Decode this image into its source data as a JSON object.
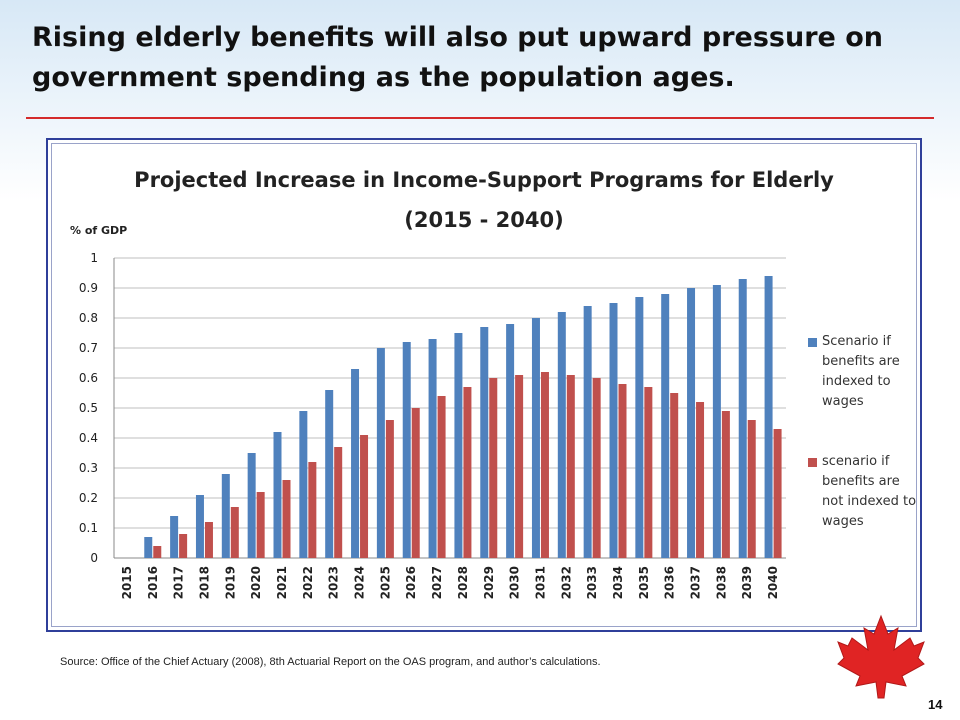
{
  "slide": {
    "title_line1": "Rising elderly benefits will also put upward pressure on",
    "title_line2": "government spending as the population ages.",
    "source": "Source:  Office of the Chief Actuary (2008),  8th Actuarial Report on the OAS program, and author’s calculations.",
    "page_number": "14",
    "accent_color": "#d42b2b",
    "logo": "maple-leaf-icon"
  },
  "chart_data": {
    "type": "bar",
    "title_line1": "Projected Increase in Income-Support Programs for Elderly",
    "title_line2": "(2015 - 2040)",
    "ylabel": "% of GDP",
    "xlabel": "",
    "ylim": [
      0,
      1
    ],
    "yticks": [
      "0",
      "0.1",
      "0.2",
      "0.3",
      "0.4",
      "0.5",
      "0.6",
      "0.7",
      "0.8",
      "0.9",
      "1"
    ],
    "grid": true,
    "legend_position": "right",
    "categories": [
      "2015",
      "2016",
      "2017",
      "2018",
      "2019",
      "2020",
      "2021",
      "2022",
      "2023",
      "2024",
      "2025",
      "2026",
      "2027",
      "2028",
      "2029",
      "2030",
      "2031",
      "2032",
      "2033",
      "2034",
      "2035",
      "2036",
      "2037",
      "2038",
      "2039",
      "2040"
    ],
    "series": [
      {
        "name": "Scenario if benefits are indexed to wages",
        "color": "#4f81bd",
        "values": [
          0,
          0.07,
          0.14,
          0.21,
          0.28,
          0.35,
          0.42,
          0.49,
          0.56,
          0.63,
          0.7,
          0.72,
          0.73,
          0.75,
          0.77,
          0.78,
          0.8,
          0.82,
          0.84,
          0.85,
          0.87,
          0.88,
          0.9,
          0.91,
          0.93,
          0.94
        ]
      },
      {
        "name": "scenario if benefits are not indexed to wages",
        "color": "#c0504d",
        "values": [
          0,
          0.04,
          0.08,
          0.12,
          0.17,
          0.22,
          0.26,
          0.32,
          0.37,
          0.41,
          0.46,
          0.5,
          0.54,
          0.57,
          0.6,
          0.61,
          0.62,
          0.61,
          0.6,
          0.58,
          0.57,
          0.55,
          0.52,
          0.49,
          0.46,
          0.43
        ]
      }
    ]
  }
}
